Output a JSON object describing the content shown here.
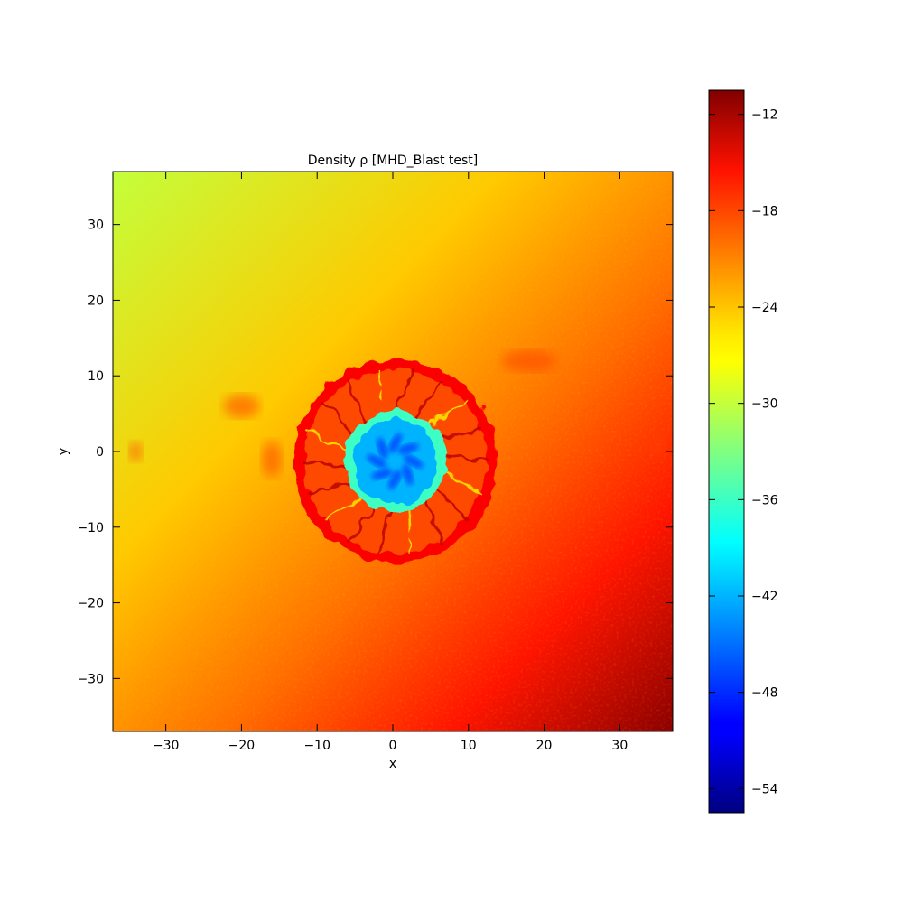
{
  "chart_data": {
    "type": "heatmap",
    "title": "Density ρ [MHD_Blast test]",
    "xlabel": "x",
    "ylabel": "y",
    "xlim": [
      -37,
      37
    ],
    "ylim": [
      -37,
      37
    ],
    "xticks": [
      -30,
      -20,
      -10,
      0,
      10,
      20,
      30
    ],
    "yticks": [
      -30,
      -20,
      -10,
      0,
      10,
      20,
      30
    ],
    "colorbar": {
      "colormap": "jet",
      "range": [
        -55.5,
        -10.5
      ],
      "ticks": [
        -54,
        -48,
        -42,
        -36,
        -30,
        -24,
        -18,
        -12
      ]
    },
    "field_description_values": {
      "background_upper_left": -30,
      "background_lower_right": -11,
      "shell_ring_radius": 13,
      "shell_value": -16,
      "core_radius": 6,
      "core_value": -42
    }
  }
}
